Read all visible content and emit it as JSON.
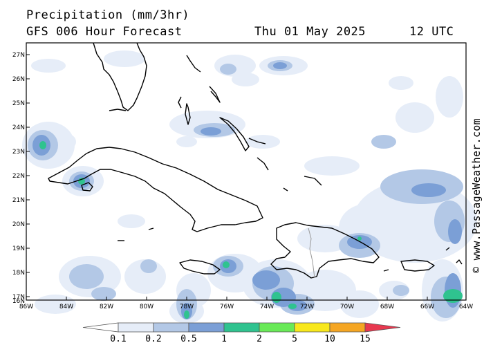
{
  "header": {
    "title": "Precipitation (mm/3hr)",
    "model": "GFS 006 Hour Forecast",
    "date": "Thu 01 May 2025",
    "time": "12 UTC"
  },
  "credit": "© www.PassageWeather.com",
  "axes": {
    "lat_labels": [
      "27N",
      "26N",
      "25N",
      "24N",
      "23N",
      "22N",
      "21N",
      "20N",
      "19N",
      "18N",
      "17N",
      "16N"
    ],
    "lon_labels": [
      "86W",
      "84W",
      "82W",
      "80W",
      "78W",
      "76W",
      "74W",
      "72W",
      "70W",
      "68W",
      "66W",
      "64W"
    ],
    "lat_range": [
      16,
      27.4
    ],
    "lon_range": [
      -86,
      -64
    ]
  },
  "legend": {
    "labels": [
      "0.1",
      "0.2",
      "0.5",
      "1",
      "2",
      "5",
      "10",
      "15"
    ],
    "colors": [
      "#ffffff",
      "#e6edf8",
      "#b3c8e6",
      "#7b9fd6",
      "#2fc38f",
      "#69ea57",
      "#f8e81c",
      "#f5a623",
      "#e8384f"
    ]
  },
  "map_layers": [
    "coastline",
    "precipitation"
  ]
}
